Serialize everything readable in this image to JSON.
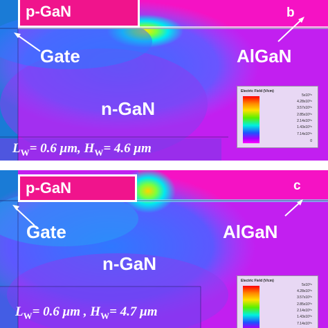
{
  "panels": [
    {
      "id": "b",
      "pgan_label": "p-GaN",
      "gate_label": "Gate",
      "algan_label": "AlGaN",
      "ngan_label": "n-GaN",
      "panel_letter": "b",
      "dims": {
        "lw_symbol": "L",
        "lw_sub": "W",
        "lw_value": "= 0.6 μm, ",
        "hw_symbol": "H",
        "hw_sub": "W",
        "hw_value": "= 4.6 μm"
      }
    },
    {
      "id": "c",
      "pgan_label": "p-GaN",
      "gate_label": "Gate",
      "algan_label": "AlGaN",
      "ngan_label": "n-GaN",
      "panel_letter": "c",
      "dims": {
        "lw_symbol": "L",
        "lw_sub": "W",
        "lw_value": "= 0.6 μm , ",
        "hw_symbol": "H",
        "hw_sub": "W",
        "hw_value": "= 4.7 μm"
      }
    }
  ],
  "legend": {
    "title": "Electric Field (V/cm)",
    "ticks": [
      "5x10⁰⁶",
      "4.28x10⁰⁶",
      "3.57x10⁰⁶",
      "2.85x10⁰⁶",
      "2.14x10⁰⁶",
      "1.43x10⁰⁶",
      "7.14x10⁰⁵",
      "0"
    ]
  },
  "colors": {
    "field_low": "#ff00ff",
    "field_mid_low": "#a000ff",
    "field_mid": "#2b5cff",
    "field_cyan": "#00e8f0",
    "field_high": "#ffe600",
    "field_peak": "#ff3300",
    "pgan_box": "#f0148c",
    "label_text": "#ffffff"
  }
}
